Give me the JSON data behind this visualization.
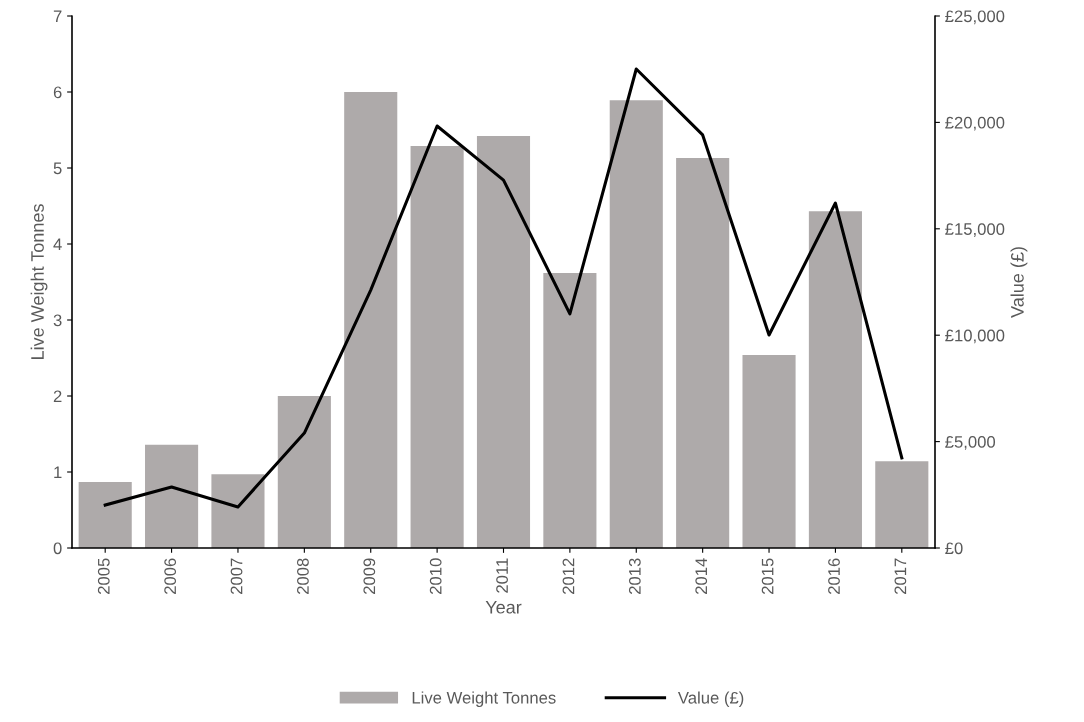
{
  "chart_data": {
    "type": "bar",
    "xlabel": "Year",
    "ylabel": "Live Weight Tonnes",
    "y2label": "Value (£)",
    "categories": [
      "2005",
      "2006",
      "2007",
      "2008",
      "2009",
      "2010",
      "2011",
      "2012",
      "2013",
      "2014",
      "2015",
      "2016",
      "2017"
    ],
    "series": [
      {
        "name": "Live Weight Tonnes",
        "color": "#aeaaaa",
        "values": [
          0.87,
          1.36,
          0.97,
          2.0,
          6.0,
          5.29,
          5.42,
          3.62,
          5.89,
          5.13,
          2.54,
          4.43,
          1.14
        ]
      },
      {
        "name": "Value (£)",
        "type": "line",
        "axis": "y2",
        "color": "#000000",
        "values": [
          2020,
          2870,
          1930,
          5400,
          12120,
          19830,
          17290,
          11000,
          22510,
          19410,
          10010,
          16210,
          4230
        ]
      }
    ],
    "ylim": [
      0,
      7
    ],
    "yticks": [
      0,
      1,
      2,
      3,
      4,
      5,
      6,
      7
    ],
    "y2lim": [
      0,
      25000
    ],
    "y2ticks": [
      {
        "value": 0,
        "label": "£0"
      },
      {
        "value": 5000,
        "label": "£5,000"
      },
      {
        "value": 10000,
        "label": "£10,000"
      },
      {
        "value": 15000,
        "label": "£15,000"
      },
      {
        "value": 20000,
        "label": "£20,000"
      },
      {
        "value": 25000,
        "label": "£25,000"
      }
    ],
    "grid": false,
    "legend": "bottom",
    "marker": "none",
    "line_style": "solid"
  }
}
